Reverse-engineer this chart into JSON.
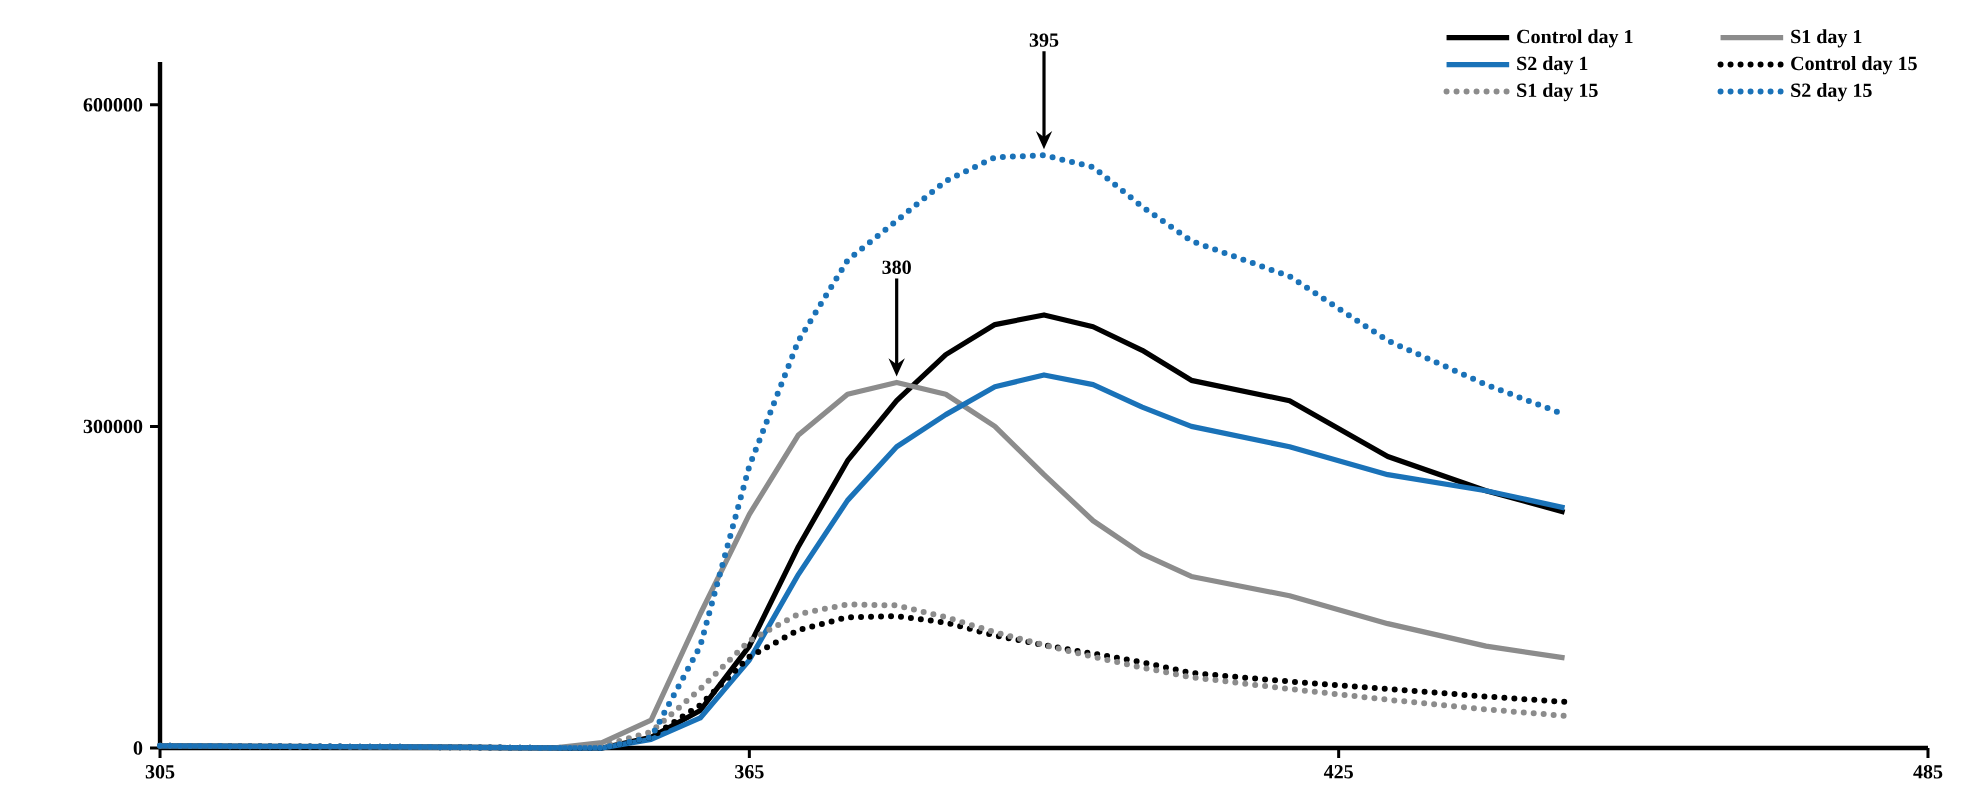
{
  "chart_data": {
    "type": "line",
    "x": [
      305,
      330,
      345,
      350,
      355,
      360,
      365,
      370,
      375,
      380,
      385,
      390,
      395,
      400,
      405,
      410,
      420,
      430,
      440,
      448
    ],
    "xlim": [
      305,
      485
    ],
    "xticks": [
      305,
      365,
      425,
      485
    ],
    "ylim": [
      0,
      640000
    ],
    "yticks": [
      0,
      300000,
      600000
    ],
    "grid": false,
    "legend": "top right",
    "marker": "none",
    "series": [
      {
        "name": "Control day 1",
        "color": "#000000",
        "line_style": "solid",
        "values": [
          2000,
          1000,
          0,
          0,
          10000,
          35000,
          95000,
          188000,
          268000,
          324000,
          367000,
          395000,
          404000,
          393000,
          371000,
          343000,
          324000,
          272000,
          240000,
          220000
        ]
      },
      {
        "name": "S1 day 1",
        "color": "#8c8c8c",
        "line_style": "solid",
        "values": [
          2000,
          1000,
          0,
          5000,
          26000,
          125000,
          218000,
          292000,
          330000,
          341000,
          330000,
          300000,
          255000,
          212000,
          181000,
          160000,
          142000,
          116000,
          95000,
          84000
        ]
      },
      {
        "name": "S2 day 1",
        "color": "#1a72b8",
        "line_style": "solid",
        "values": [
          2000,
          1000,
          0,
          0,
          8000,
          28000,
          82000,
          162000,
          231000,
          281000,
          311000,
          337000,
          348000,
          339000,
          318000,
          300000,
          281000,
          255000,
          240000,
          224000
        ]
      },
      {
        "name": "Control day 15",
        "color": "#000000",
        "line_style": "dotted",
        "values": [
          2000,
          1000,
          0,
          0,
          10000,
          40000,
          85000,
          110000,
          122000,
          123000,
          117000,
          105000,
          96000,
          88000,
          80000,
          70000,
          62000,
          55000,
          48000,
          43000
        ]
      },
      {
        "name": "S1 day 15",
        "color": "#8c8c8c",
        "line_style": "dotted",
        "values": [
          2000,
          1000,
          0,
          2000,
          15000,
          55000,
          100000,
          125000,
          134000,
          133000,
          122000,
          108000,
          96000,
          85000,
          75000,
          66000,
          55000,
          45000,
          36000,
          30000
        ]
      },
      {
        "name": "S2 day 15",
        "color": "#1a72b8",
        "line_style": "dotted",
        "values": [
          2000,
          1000,
          0,
          0,
          10000,
          95000,
          263000,
          380000,
          455000,
          492000,
          529000,
          551000,
          553000,
          542000,
          505000,
          473000,
          440000,
          380000,
          339000,
          311000
        ]
      }
    ],
    "annotations": [
      {
        "text": "380",
        "x": 380,
        "y": 341000
      },
      {
        "text": "395",
        "x": 395,
        "y": 553000
      }
    ]
  }
}
